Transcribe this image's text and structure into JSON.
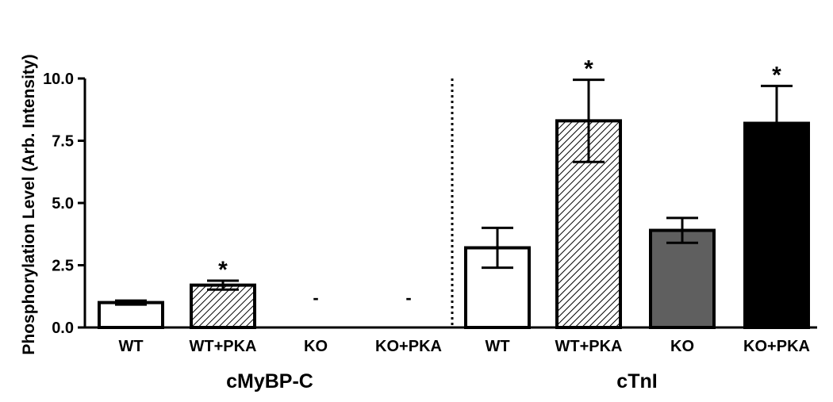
{
  "chart_data": {
    "type": "bar",
    "ylabel": "Phosphorylation Level (Arb.  Intensity)",
    "ylim": [
      0,
      10
    ],
    "yticks": [
      "0.0",
      "2.5",
      "5.0",
      "7.5",
      "10.0"
    ],
    "ytick_values": [
      0,
      2.5,
      5.0,
      7.5,
      10.0
    ],
    "grid": false,
    "groups": [
      {
        "label": "cMyBP-C",
        "bars": [
          {
            "category": "WT",
            "value": 1.0,
            "error": 0.08,
            "fill": "white",
            "annotation": ""
          },
          {
            "category": "WT+PKA",
            "value": 1.7,
            "error": 0.18,
            "fill": "hatched",
            "annotation": "*"
          },
          {
            "category": "KO",
            "value": 0,
            "error": 0,
            "fill": "none",
            "annotation": "-"
          },
          {
            "category": "KO+PKA",
            "value": 0,
            "error": 0,
            "fill": "none",
            "annotation": "-"
          }
        ]
      },
      {
        "label": "cTnI",
        "bars": [
          {
            "category": "WT",
            "value": 3.2,
            "error": 0.8,
            "fill": "white",
            "annotation": ""
          },
          {
            "category": "WT+PKA",
            "value": 8.3,
            "error": 1.65,
            "fill": "hatched",
            "annotation": "*"
          },
          {
            "category": "KO",
            "value": 3.9,
            "error": 0.5,
            "fill": "gray",
            "annotation": ""
          },
          {
            "category": "KO+PKA",
            "value": 8.2,
            "error": 1.5,
            "fill": "black",
            "annotation": "*"
          }
        ]
      }
    ],
    "colors": {
      "gray": "#5f5f5f",
      "black": "#000000",
      "white": "#ffffff",
      "hatch": "#000000"
    }
  }
}
